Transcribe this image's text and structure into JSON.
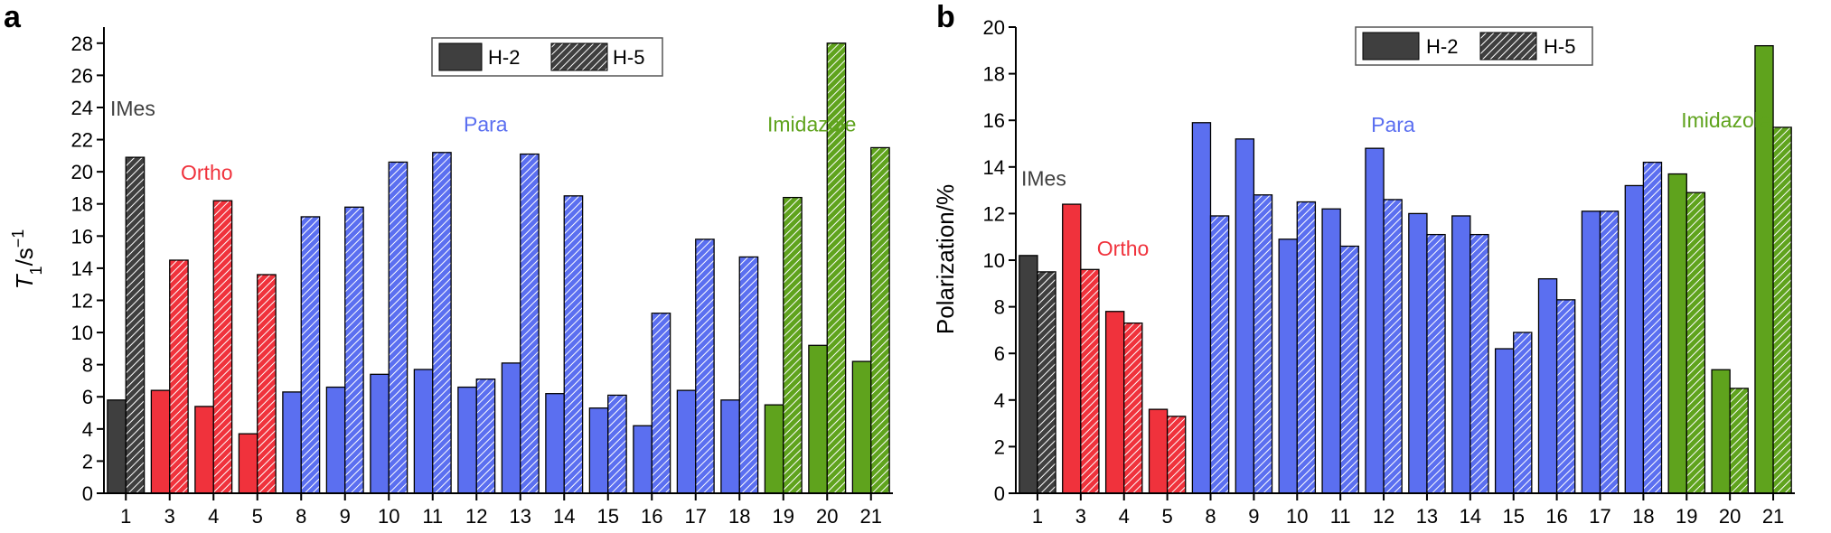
{
  "colors": {
    "IMes": "#3f3f3f",
    "Ortho": "#f0323c",
    "Para": "#5b6ff0",
    "Imidazole": "#5fa31d",
    "legend": "#3f3f3f"
  },
  "group_labels": {
    "IMes": "IMes",
    "Ortho": "Ortho",
    "Para": "Para",
    "Imidazole": "Imidazole"
  },
  "legend": {
    "h2": "H-2",
    "h5": "H-5"
  },
  "chart_data": [
    {
      "type": "bar",
      "panel": "a",
      "title": "",
      "xlabel": "",
      "ylabel": "T1/s−1",
      "ylim": [
        0,
        29
      ],
      "yticks": [
        "0",
        "2",
        "4",
        "6",
        "8",
        "10",
        "12",
        "14",
        "16",
        "18",
        "20",
        "22",
        "24",
        "26",
        "28"
      ],
      "categories": [
        "1",
        "3",
        "4",
        "5",
        "8",
        "9",
        "10",
        "11",
        "12",
        "13",
        "14",
        "15",
        "16",
        "17",
        "18",
        "19",
        "20",
        "21"
      ],
      "groups": [
        "IMes",
        "Ortho",
        "Ortho",
        "Ortho",
        "Para",
        "Para",
        "Para",
        "Para",
        "Para",
        "Para",
        "Para",
        "Para",
        "Para",
        "Para",
        "Para",
        "Imidazole",
        "Imidazole",
        "Imidazole"
      ],
      "series": [
        {
          "name": "H-2",
          "pattern": "solid",
          "values": [
            5.8,
            6.4,
            5.4,
            3.7,
            6.3,
            6.6,
            7.4,
            7.7,
            6.6,
            8.1,
            6.2,
            5.3,
            4.2,
            6.4,
            5.8,
            5.5,
            9.2,
            8.2
          ]
        },
        {
          "name": "H-5",
          "pattern": "hatched",
          "values": [
            20.9,
            14.5,
            18.2,
            13.6,
            17.2,
            17.8,
            20.6,
            21.2,
            7.1,
            21.1,
            18.5,
            6.1,
            11.2,
            15.8,
            14.7,
            18.4,
            28.0,
            21.5
          ]
        }
      ],
      "ylabel_parts": {
        "italic": "T",
        "sub": "1",
        "rest": "/s",
        "sup": "−1"
      },
      "legend_position": "top-right",
      "annotations": [
        {
          "group": "IMes",
          "text": "IMes"
        },
        {
          "group": "Ortho",
          "text": "Ortho"
        },
        {
          "group": "Para",
          "text": "Para"
        },
        {
          "group": "Imidazole",
          "text": "Imidazole"
        }
      ]
    },
    {
      "type": "bar",
      "panel": "b",
      "title": "",
      "xlabel": "",
      "ylabel": "Polarization/%",
      "ylim": [
        0,
        20
      ],
      "yticks": [
        "0",
        "2",
        "4",
        "6",
        "8",
        "10",
        "12",
        "14",
        "16",
        "18",
        "20"
      ],
      "categories": [
        "1",
        "3",
        "4",
        "5",
        "8",
        "9",
        "10",
        "11",
        "12",
        "13",
        "14",
        "15",
        "16",
        "17",
        "18",
        "19",
        "20",
        "21"
      ],
      "groups": [
        "IMes",
        "Ortho",
        "Ortho",
        "Ortho",
        "Para",
        "Para",
        "Para",
        "Para",
        "Para",
        "Para",
        "Para",
        "Para",
        "Para",
        "Para",
        "Para",
        "Imidazole",
        "Imidazole",
        "Imidazole"
      ],
      "series": [
        {
          "name": "H-2",
          "pattern": "solid",
          "values": [
            10.2,
            12.4,
            7.8,
            3.6,
            15.9,
            15.2,
            10.9,
            12.2,
            14.8,
            12.0,
            11.9,
            6.2,
            9.2,
            12.1,
            13.2,
            13.7,
            5.3,
            19.2
          ]
        },
        {
          "name": "H-5",
          "pattern": "hatched",
          "values": [
            9.5,
            9.6,
            7.3,
            3.3,
            11.9,
            12.8,
            12.5,
            10.6,
            12.6,
            11.1,
            11.1,
            6.9,
            8.3,
            12.1,
            14.2,
            12.9,
            4.5,
            15.7
          ]
        }
      ],
      "legend_position": "top-center",
      "annotations": [
        {
          "group": "IMes",
          "text": "IMes"
        },
        {
          "group": "Ortho",
          "text": "Ortho"
        },
        {
          "group": "Para",
          "text": "Para"
        },
        {
          "group": "Imidazole",
          "text": "Imidazole"
        }
      ]
    }
  ]
}
